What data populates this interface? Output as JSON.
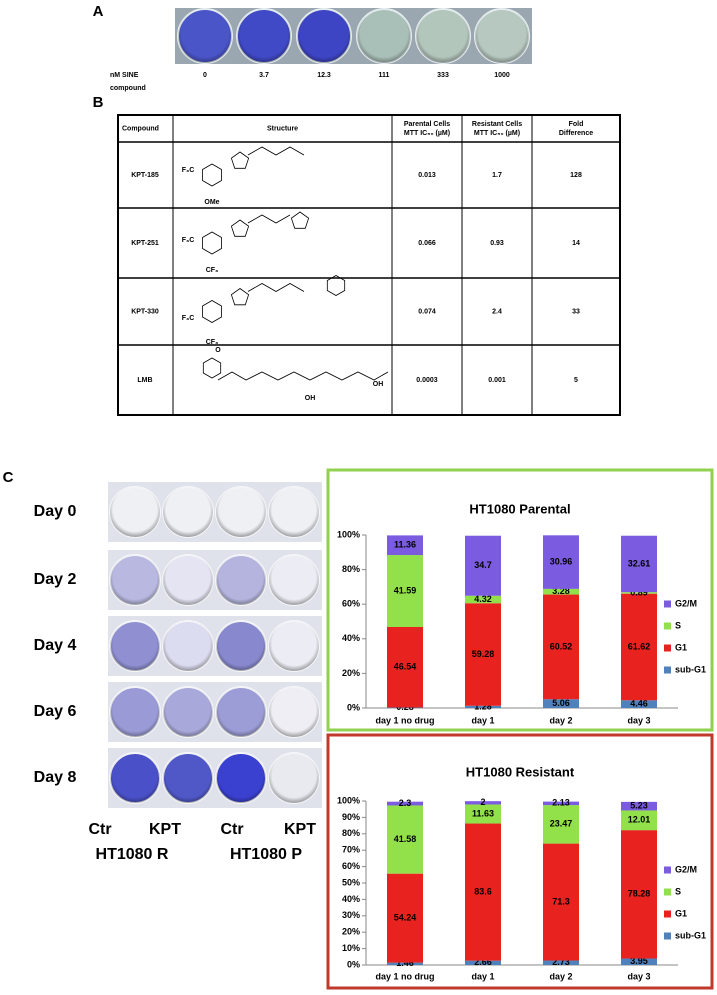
{
  "panel_labels": [
    "A",
    "B",
    "C"
  ],
  "panel_a": {
    "row_label": [
      "nM SINE",
      "compound"
    ],
    "doses": [
      "0",
      "3.7",
      "12.3",
      "111",
      "333",
      "1000"
    ]
  },
  "table": {
    "header": [
      [
        "Compound"
      ],
      [
        "Structure"
      ],
      [
        "Parental Cells",
        "MTT IC₅₀ (µM)"
      ],
      [
        "Resistant Cells",
        "MTT IC₅₀ (µM)"
      ],
      [
        "Fold",
        "Difference"
      ]
    ],
    "rows": [
      {
        "compound": "KPT-185",
        "structure_labels": [
          "F₃C",
          "OMe"
        ],
        "parental": "0.013",
        "resistant": "1.7",
        "fold": "128"
      },
      {
        "compound": "KPT-251",
        "structure_labels": [
          "F₃C",
          "CF₃"
        ],
        "parental": "0.066",
        "resistant": "0.93",
        "fold": "14"
      },
      {
        "compound": "KPT-330",
        "structure_labels": [
          "F₃C",
          "CF₃"
        ],
        "parental": "0.074",
        "resistant": "2.4",
        "fold": "33"
      },
      {
        "compound": "LMB",
        "structure_labels": [
          "O",
          "OH",
          "OH"
        ],
        "parental": "0.0003",
        "resistant": "0.001",
        "fold": "5"
      }
    ]
  },
  "panel_c": {
    "days": [
      "Day 0",
      "Day 2",
      "Day 4",
      "Day 6",
      "Day 8"
    ],
    "columns": [
      "Ctr",
      "KPT",
      "Ctr",
      "KPT"
    ],
    "groups": [
      "HT1080 R",
      "HT1080 P"
    ]
  },
  "chart_data": [
    {
      "type": "stacked_bar",
      "title": "HT1080 Parental",
      "border_color": "#92d050",
      "legend": "right",
      "categories": [
        "day 1 no drug",
        "day 1",
        "day 2",
        "day 3"
      ],
      "series": [
        {
          "name": "sub-G1",
          "color": "#4f81bd",
          "values": [
            0.28,
            1.28,
            5.06,
            4.46
          ]
        },
        {
          "name": "G1",
          "color": "#e8231f",
          "values": [
            46.54,
            59.28,
            60.52,
            61.62
          ]
        },
        {
          "name": "S",
          "color": "#92e04a",
          "values": [
            41.59,
            4.32,
            3.28,
            0.89
          ]
        },
        {
          "name": "G2/M",
          "color": "#7b5be0",
          "values": [
            11.36,
            34.7,
            30.96,
            32.61
          ]
        }
      ],
      "ylim": [
        0,
        100
      ],
      "yticks": [
        {
          "value": 0,
          "label": "0%"
        },
        {
          "value": 20,
          "label": "20%"
        },
        {
          "value": 40,
          "label": "40%"
        },
        {
          "value": 60,
          "label": "60%"
        },
        {
          "value": 80,
          "label": "80%"
        },
        {
          "value": 100,
          "label": "100%"
        }
      ]
    },
    {
      "type": "stacked_bar",
      "title": "HT1080 Resistant",
      "border_color": "#c0392b",
      "legend": "right",
      "categories": [
        "day 1 no drug",
        "day 1",
        "day 2",
        "day 3"
      ],
      "series": [
        {
          "name": "sub-G1",
          "color": "#4f81bd",
          "values": [
            1.46,
            2.66,
            2.73,
            3.95
          ]
        },
        {
          "name": "G1",
          "color": "#e8231f",
          "values": [
            54.24,
            83.6,
            71.3,
            78.28
          ]
        },
        {
          "name": "S",
          "color": "#92e04a",
          "values": [
            41.58,
            11.63,
            23.47,
            12.01
          ]
        },
        {
          "name": "G2/M",
          "color": "#7b5be0",
          "values": [
            2.3,
            2,
            2.13,
            5.23
          ]
        }
      ],
      "ylim": [
        0,
        100
      ],
      "yticks": [
        {
          "value": 0,
          "label": "0%"
        },
        {
          "value": 10,
          "label": "10%"
        },
        {
          "value": 20,
          "label": "20%"
        },
        {
          "value": 30,
          "label": "30%"
        },
        {
          "value": 40,
          "label": "40%"
        },
        {
          "value": 50,
          "label": "50%"
        },
        {
          "value": 60,
          "label": "60%"
        },
        {
          "value": 70,
          "label": "70%"
        },
        {
          "value": 80,
          "label": "80%"
        },
        {
          "value": 90,
          "label": "90%"
        },
        {
          "value": 100,
          "label": "100%"
        }
      ]
    }
  ]
}
